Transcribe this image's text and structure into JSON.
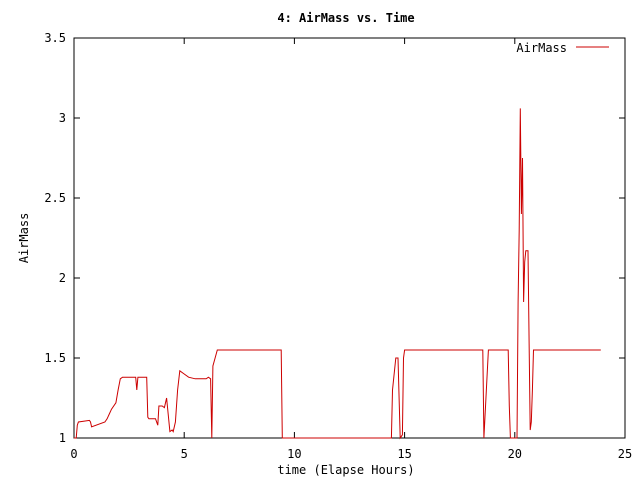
{
  "chart_data": {
    "type": "line",
    "title": "4: AirMass vs. Time",
    "xlabel": "time (Elapse Hours)",
    "ylabel": "AirMass",
    "xlim": [
      0,
      25
    ],
    "ylim": [
      1,
      3.5
    ],
    "x_ticks": [
      {
        "value": 0,
        "label": "0"
      },
      {
        "value": 5,
        "label": "5"
      },
      {
        "value": 10,
        "label": "10"
      },
      {
        "value": 15,
        "label": "15"
      },
      {
        "value": 20,
        "label": "20"
      },
      {
        "value": 25,
        "label": "25"
      }
    ],
    "y_ticks": [
      {
        "value": 1,
        "label": "1"
      },
      {
        "value": 1.5,
        "label": "1.5"
      },
      {
        "value": 2,
        "label": "2"
      },
      {
        "value": 2.5,
        "label": "2.5"
      },
      {
        "value": 3,
        "label": "3"
      },
      {
        "value": 3.5,
        "label": "3.5"
      }
    ],
    "grid": false,
    "legend": {
      "position": "top-right",
      "show_line": true
    },
    "series": [
      {
        "name": "AirMass",
        "color": "#cc0000",
        "x": [
          0.0,
          0.1,
          0.15,
          0.2,
          0.7,
          0.75,
          0.8,
          1.4,
          1.5,
          1.6,
          1.7,
          1.9,
          2.0,
          2.1,
          2.2,
          2.8,
          2.85,
          2.9,
          3.3,
          3.35,
          3.4,
          3.45,
          3.5,
          3.7,
          3.8,
          3.85,
          3.9,
          4.0,
          4.1,
          4.2,
          4.35,
          4.45,
          4.5,
          4.6,
          4.7,
          4.8,
          5.0,
          5.2,
          5.5,
          6.0,
          6.1,
          6.2,
          6.25,
          6.3,
          6.4,
          6.5,
          6.6,
          9.4,
          9.45,
          9.5,
          14.4,
          14.45,
          14.6,
          14.7,
          14.8,
          14.9,
          14.95,
          15.0,
          18.55,
          18.6,
          18.8,
          18.9,
          19.0,
          19.1,
          19.7,
          19.75,
          19.8,
          20.1,
          20.15,
          20.2,
          20.25,
          20.3,
          20.35,
          20.4,
          20.45,
          20.5,
          20.55,
          20.6,
          20.65,
          20.7,
          20.75,
          20.8,
          20.85,
          20.9,
          20.95,
          21.0,
          21.05,
          21.1,
          23.9
        ],
        "y": [
          1.0,
          1.0,
          1.08,
          1.1,
          1.11,
          1.1,
          1.07,
          1.1,
          1.12,
          1.15,
          1.18,
          1.22,
          1.3,
          1.37,
          1.38,
          1.38,
          1.3,
          1.38,
          1.38,
          1.13,
          1.12,
          1.12,
          1.12,
          1.12,
          1.08,
          1.2,
          1.2,
          1.2,
          1.19,
          1.25,
          1.04,
          1.05,
          1.04,
          1.1,
          1.3,
          1.42,
          1.4,
          1.38,
          1.37,
          1.37,
          1.38,
          1.37,
          1.0,
          1.45,
          1.5,
          1.55,
          1.55,
          1.55,
          1.0,
          1.0,
          1.0,
          1.3,
          1.5,
          1.5,
          1.0,
          1.02,
          1.5,
          1.55,
          1.55,
          1.0,
          1.55,
          1.55,
          1.55,
          1.55,
          1.55,
          1.2,
          1.0,
          1.0,
          1.85,
          2.3,
          3.06,
          2.4,
          2.75,
          1.85,
          2.1,
          2.17,
          2.17,
          2.17,
          1.6,
          1.05,
          1.1,
          1.3,
          1.55,
          1.55,
          1.55,
          1.55,
          1.55,
          1.55,
          1.55
        ]
      }
    ]
  }
}
